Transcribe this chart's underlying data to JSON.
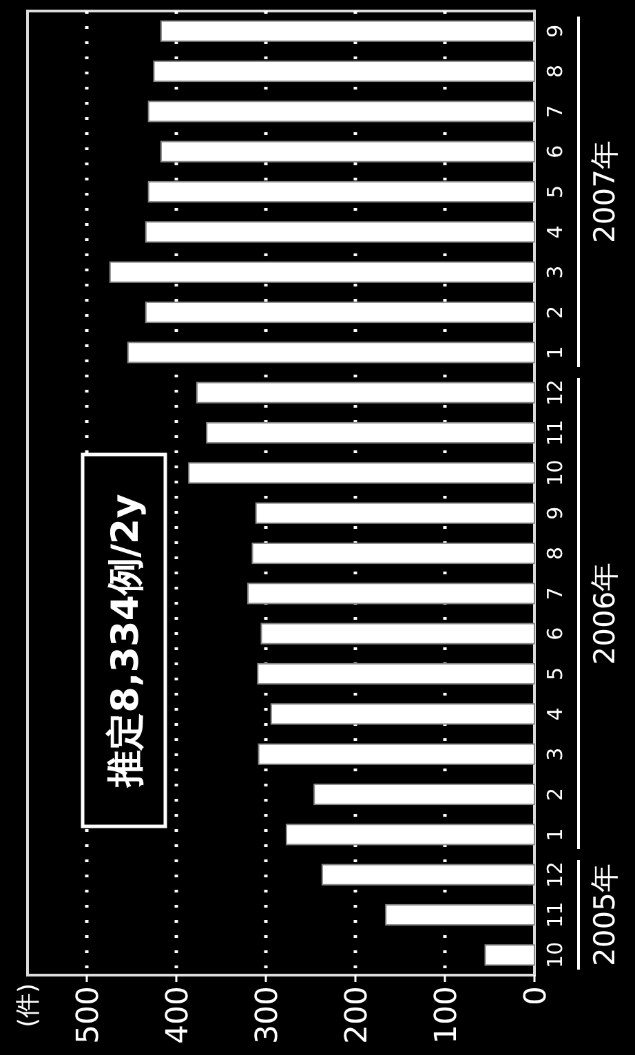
{
  "chart_data": {
    "type": "bar",
    "orientation": "horizontal",
    "ylabel": "(件)",
    "categories": [
      "9",
      "8",
      "7",
      "6",
      "5",
      "4",
      "3",
      "2",
      "1",
      "12",
      "11",
      "10",
      "9",
      "8",
      "7",
      "6",
      "5",
      "4",
      "3",
      "2",
      "1",
      "12",
      "11",
      "10"
    ],
    "values": [
      417,
      425,
      431,
      417,
      431,
      434,
      474,
      434,
      454,
      377,
      366,
      386,
      311,
      315,
      320,
      305,
      309,
      294,
      308,
      246,
      277,
      237,
      166,
      55
    ],
    "color": "#ffffff",
    "xlim": [
      500,
      0
    ],
    "xticks": [
      500,
      400,
      300,
      200,
      100,
      0
    ],
    "grid": "x",
    "annotations": [
      "推定8,334例/2y",
      "2007年",
      "2006年",
      "2005年"
    ]
  }
}
